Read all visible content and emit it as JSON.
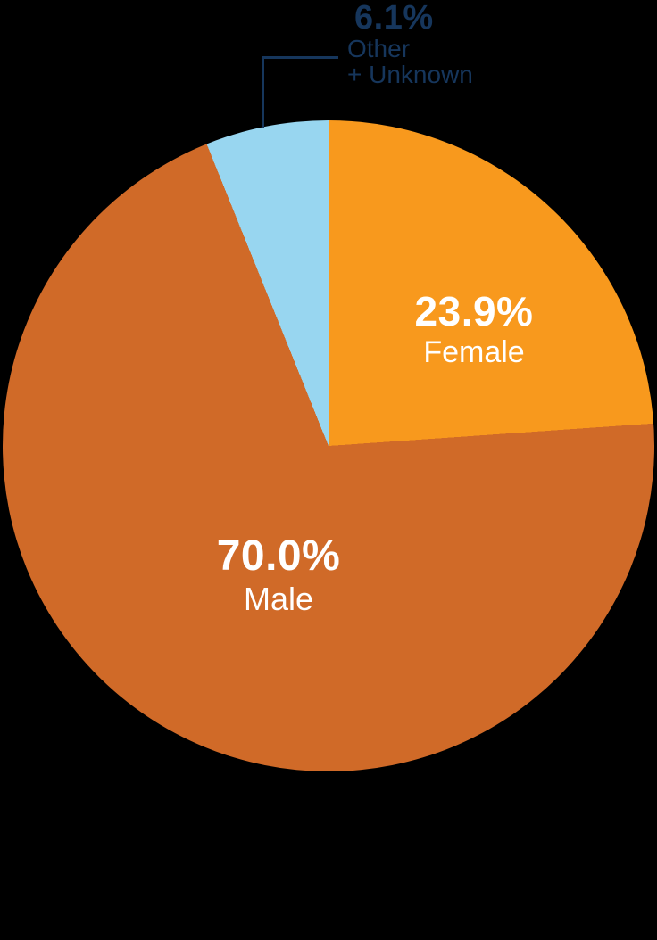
{
  "chart_data": {
    "type": "pie",
    "title": "",
    "unit": "percent",
    "start_position": "top",
    "direction": "clockwise",
    "legend": "none",
    "slices": [
      {
        "label": "Female",
        "value": 23.9,
        "display": "23.9%",
        "color": "#F8991D"
      },
      {
        "label": "Male",
        "value": 70.0,
        "display": "70.0%",
        "color": "#D06A28"
      },
      {
        "label": "Other + Unknown",
        "value": 6.1,
        "display": "6.1%",
        "color": "#98D6F0"
      }
    ]
  },
  "annotation": {
    "percent": "6.1%",
    "line1": "Other",
    "line2": "+ Unknown"
  },
  "colors": {
    "background": "#000000",
    "inside_label_text": "#FFFFFF",
    "annotation_text": "#16365C",
    "callout_line": "#16365C"
  }
}
